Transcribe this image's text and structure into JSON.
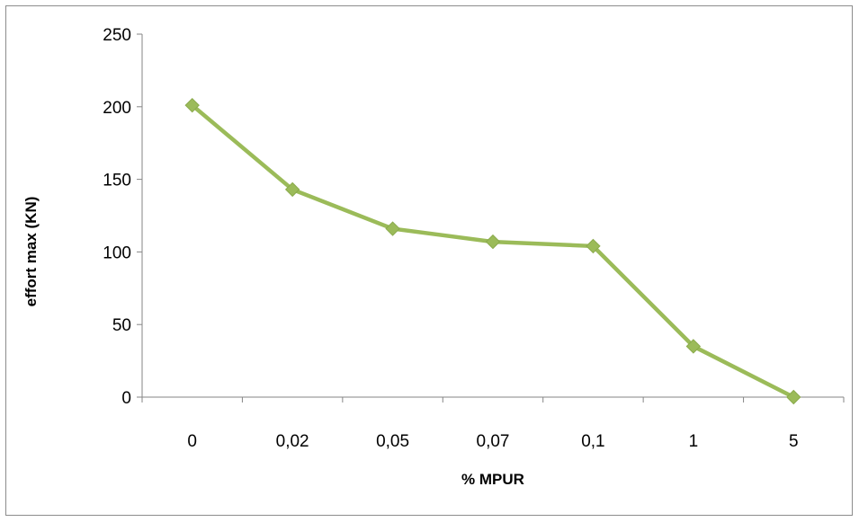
{
  "chart_data": {
    "type": "line",
    "title": "",
    "xlabel": "% MPUR",
    "ylabel": "effort max (KN)",
    "categories": [
      "0",
      "0,02",
      "0,05",
      "0,07",
      "0,1",
      "1",
      "5"
    ],
    "series": [
      {
        "values": [
          201,
          143,
          116,
          107,
          104,
          35,
          0
        ],
        "color": "#9bbb59",
        "marker": "diamond"
      }
    ],
    "ylim": [
      0,
      250
    ],
    "yticks": [
      "0",
      "50",
      "100",
      "150",
      "200",
      "250"
    ],
    "grid": false,
    "legend": "none"
  }
}
